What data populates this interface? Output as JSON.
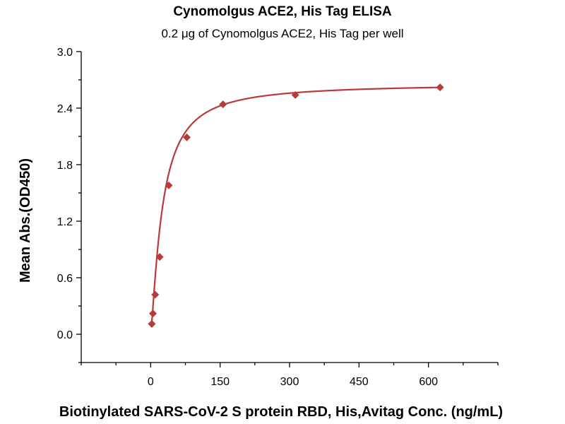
{
  "chart_data": {
    "type": "scatter",
    "title": "Cynomolgus ACE2, His Tag ELISA",
    "subtitle": "0.2 μg of Cynomolgus ACE2, His Tag per well",
    "xlabel": "Biotinylated SARS-CoV-2 S protein RBD, His,Avitag Conc. (ng/mL)",
    "ylabel": "Mean Abs.(OD450)",
    "xlim": [
      -150,
      750
    ],
    "ylim": [
      -0.3,
      3.0
    ],
    "x_ticks": [
      0,
      150,
      300,
      450,
      600
    ],
    "x_tick_labels": [
      "0",
      "150",
      "300",
      "450",
      "600"
    ],
    "y_ticks": [
      0.0,
      0.6,
      1.2,
      1.8,
      2.4,
      3.0
    ],
    "y_tick_labels": [
      "0.0",
      "0.6",
      "1.2",
      "1.8",
      "2.4",
      "3.0"
    ],
    "grid": false,
    "legend": "none",
    "series": [
      {
        "points": [
          {
            "x": 2.44,
            "y": 0.11
          },
          {
            "x": 4.88,
            "y": 0.22
          },
          {
            "x": 9.77,
            "y": 0.42
          },
          {
            "x": 19.53,
            "y": 0.82
          },
          {
            "x": 39.06,
            "y": 1.58
          },
          {
            "x": 78.13,
            "y": 2.09
          },
          {
            "x": 156.25,
            "y": 2.44
          },
          {
            "x": 312.5,
            "y": 2.54
          },
          {
            "x": 625,
            "y": 2.62
          }
        ],
        "fit": {
          "model": "4PL",
          "bottom": 0.0,
          "top": 2.66,
          "ec50": 25,
          "hill": 1.3
        },
        "color": "#b83a3a"
      }
    ]
  }
}
